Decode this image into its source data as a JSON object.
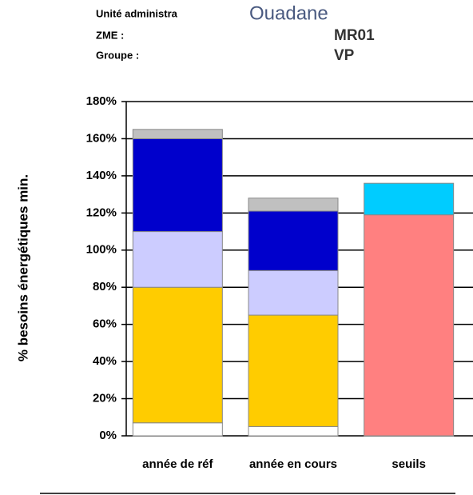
{
  "header": {
    "unit_label": "Unité administra",
    "unit_value": "Ouadane",
    "zme_label": "ZME :",
    "zme_value": "MR01",
    "group_label": "Groupe :",
    "group_value": "VP"
  },
  "chart_data": {
    "type": "stacked_bar",
    "ylabel": "% besoins énergétiques min.",
    "categories": [
      "année de réf",
      "année en cours",
      "seuils"
    ],
    "series": [
      {
        "color": "#ffffff",
        "values": [
          7,
          5,
          null
        ]
      },
      {
        "color": "#ffcc00",
        "values": [
          73,
          60,
          null
        ]
      },
      {
        "color": "#ccccff",
        "values": [
          30,
          24,
          null
        ]
      },
      {
        "color": "#0000cc",
        "values": [
          50,
          32,
          null
        ]
      },
      {
        "color": "#c0c0c0",
        "values": [
          5,
          7,
          null
        ]
      },
      {
        "color": "#ff8080",
        "values": [
          null,
          null,
          119
        ]
      },
      {
        "color": "#00ccff",
        "values": [
          null,
          null,
          17
        ]
      }
    ],
    "ylim": [
      0,
      180
    ],
    "yticks": [
      {
        "value": 0,
        "label": "0%"
      },
      {
        "value": 20,
        "label": "20%"
      },
      {
        "value": 40,
        "label": "40%"
      },
      {
        "value": 60,
        "label": "60%"
      },
      {
        "value": 80,
        "label": "80%"
      },
      {
        "value": 100,
        "label": "100%"
      },
      {
        "value": 120,
        "label": "120%"
      },
      {
        "value": 140,
        "label": "140%"
      },
      {
        "value": 160,
        "label": "160%"
      },
      {
        "value": 180,
        "label": "180%"
      }
    ],
    "grid": true
  }
}
